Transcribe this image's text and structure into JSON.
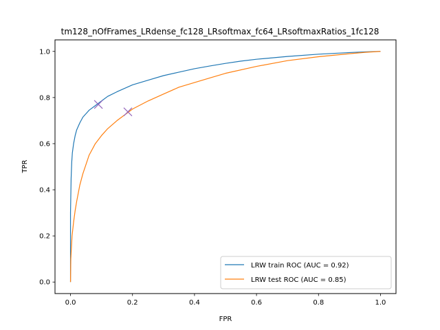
{
  "chart_data": {
    "type": "line",
    "title": "tm128_nOfFrames_LRdense_fc128_LRsoftmax_fc64_LRsoftmaxRatios_1fc128",
    "xlabel": "FPR",
    "ylabel": "TPR",
    "xlim": [
      -0.05,
      1.05
    ],
    "ylim": [
      -0.05,
      1.05
    ],
    "xticks": [
      0.0,
      0.2,
      0.4,
      0.6,
      0.8,
      1.0
    ],
    "xtick_labels": [
      "0.0",
      "0.2",
      "0.4",
      "0.6",
      "0.8",
      "1.0"
    ],
    "yticks": [
      0.0,
      0.2,
      0.4,
      0.6,
      0.8,
      1.0
    ],
    "ytick_labels": [
      "0.0",
      "0.2",
      "0.4",
      "0.6",
      "0.8",
      "1.0"
    ],
    "grid": false,
    "legend_position": "lower-right",
    "series": [
      {
        "name": "LRW train ROC (AUC = 0.92)",
        "color": "#1f77b4",
        "x": [
          0.0,
          0.0,
          0.002,
          0.004,
          0.006,
          0.01,
          0.015,
          0.02,
          0.03,
          0.04,
          0.05,
          0.06,
          0.08,
          0.1,
          0.12,
          0.15,
          0.2,
          0.25,
          0.3,
          0.35,
          0.4,
          0.45,
          0.5,
          0.55,
          0.6,
          0.7,
          0.8,
          0.9,
          0.95,
          1.0
        ],
        "y": [
          0.0,
          0.3,
          0.45,
          0.52,
          0.56,
          0.6,
          0.635,
          0.66,
          0.69,
          0.715,
          0.73,
          0.745,
          0.765,
          0.785,
          0.805,
          0.825,
          0.855,
          0.875,
          0.895,
          0.91,
          0.925,
          0.937,
          0.948,
          0.958,
          0.966,
          0.978,
          0.988,
          0.995,
          0.998,
          1.0
        ]
      },
      {
        "name": "LRW test ROC (AUC = 0.85)",
        "color": "#ff7f0e",
        "x": [
          0.0,
          0.001,
          0.003,
          0.005,
          0.01,
          0.015,
          0.02,
          0.03,
          0.04,
          0.05,
          0.06,
          0.08,
          0.1,
          0.12,
          0.15,
          0.18,
          0.2,
          0.25,
          0.3,
          0.35,
          0.4,
          0.45,
          0.5,
          0.6,
          0.7,
          0.8,
          0.9,
          0.95,
          1.0
        ],
        "y": [
          0.0,
          0.1,
          0.15,
          0.2,
          0.26,
          0.31,
          0.35,
          0.42,
          0.47,
          0.51,
          0.55,
          0.6,
          0.635,
          0.665,
          0.7,
          0.73,
          0.75,
          0.785,
          0.815,
          0.845,
          0.865,
          0.885,
          0.905,
          0.935,
          0.96,
          0.977,
          0.99,
          0.996,
          1.0
        ]
      }
    ],
    "markers": [
      {
        "x": 0.09,
        "y": 0.77,
        "symbol": "x",
        "color": "#9467bd"
      },
      {
        "x": 0.185,
        "y": 0.738,
        "symbol": "x",
        "color": "#9467bd"
      }
    ]
  }
}
